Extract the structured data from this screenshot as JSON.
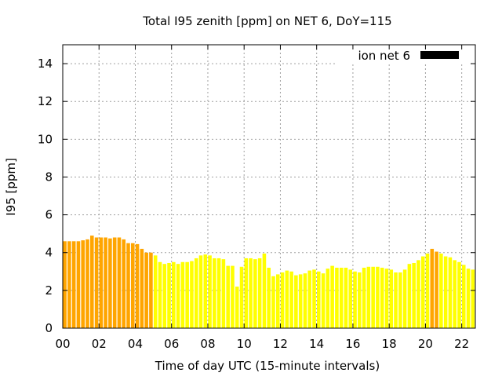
{
  "chart_data": {
    "type": "bar",
    "title": "Total I95 zenith [ppm] on NET 6, DoY=115",
    "xlabel": "Time of day UTC (15-minute intervals)",
    "ylabel": "I95 [ppm]",
    "xlim": [
      0,
      22.75
    ],
    "ylim": [
      0,
      15
    ],
    "x_ticks": [
      "00",
      "02",
      "04",
      "06",
      "08",
      "10",
      "12",
      "14",
      "16",
      "18",
      "20",
      "22"
    ],
    "x_tick_values": [
      0,
      2,
      4,
      6,
      8,
      10,
      12,
      14,
      16,
      18,
      20,
      22
    ],
    "y_ticks": [
      "0",
      "2",
      "4",
      "6",
      "8",
      "10",
      "12",
      "14"
    ],
    "y_tick_values": [
      0,
      2,
      4,
      6,
      8,
      10,
      12,
      14
    ],
    "grid": true,
    "legend": {
      "position": "top-right",
      "label": "ion net 6",
      "swatch_color": "#000000"
    },
    "bar_width_hours": 0.25,
    "colors": {
      "above_4": "#ffa500",
      "below_4": "#ffff00"
    },
    "x": [
      0.0,
      0.25,
      0.5,
      0.75,
      1.0,
      1.25,
      1.5,
      1.75,
      2.0,
      2.25,
      2.5,
      2.75,
      3.0,
      3.25,
      3.5,
      3.75,
      4.0,
      4.25,
      4.5,
      4.75,
      5.0,
      5.25,
      5.5,
      5.75,
      6.0,
      6.25,
      6.5,
      6.75,
      7.0,
      7.25,
      7.5,
      7.75,
      8.0,
      8.25,
      8.5,
      8.75,
      9.0,
      9.25,
      9.5,
      9.75,
      10.0,
      10.25,
      10.5,
      10.75,
      11.0,
      11.25,
      11.5,
      11.75,
      12.0,
      12.25,
      12.5,
      12.75,
      13.0,
      13.25,
      13.5,
      13.75,
      14.0,
      14.25,
      14.5,
      14.75,
      15.0,
      15.25,
      15.5,
      15.75,
      16.0,
      16.25,
      16.5,
      16.75,
      17.0,
      17.25,
      17.5,
      17.75,
      18.0,
      18.25,
      18.5,
      18.75,
      19.0,
      19.25,
      19.5,
      19.75,
      20.0,
      20.25,
      20.5,
      20.75,
      21.0,
      21.25,
      21.5,
      21.75,
      22.0,
      22.25,
      22.5
    ],
    "values": [
      4.6,
      4.6,
      4.6,
      4.6,
      4.65,
      4.7,
      4.9,
      4.8,
      4.8,
      4.8,
      4.75,
      4.8,
      4.8,
      4.7,
      4.5,
      4.5,
      4.45,
      4.2,
      4.0,
      4.0,
      3.85,
      3.5,
      3.4,
      3.45,
      3.5,
      3.4,
      3.5,
      3.5,
      3.55,
      3.7,
      3.85,
      3.9,
      3.85,
      3.7,
      3.7,
      3.65,
      3.3,
      3.3,
      2.2,
      3.25,
      3.7,
      3.7,
      3.65,
      3.7,
      3.95,
      3.2,
      2.75,
      2.85,
      2.95,
      3.05,
      3.0,
      2.8,
      2.85,
      2.9,
      3.05,
      3.1,
      3.0,
      2.9,
      3.15,
      3.3,
      3.2,
      3.2,
      3.2,
      3.1,
      3.0,
      2.95,
      3.2,
      3.25,
      3.25,
      3.25,
      3.2,
      3.15,
      3.1,
      2.95,
      2.95,
      3.1,
      3.4,
      3.45,
      3.6,
      3.8,
      3.95,
      4.2,
      4.05,
      3.95,
      3.8,
      3.75,
      3.6,
      3.5,
      3.35,
      3.15,
      3.1
    ]
  }
}
